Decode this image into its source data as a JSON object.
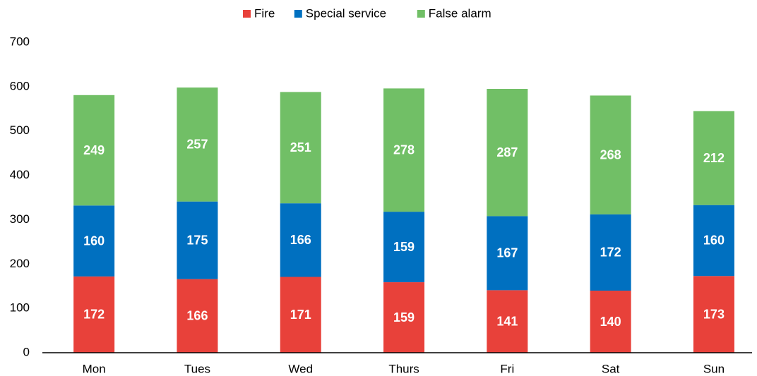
{
  "chart_data": {
    "type": "stacked_bar",
    "categories": [
      "Mon",
      "Tues",
      "Wed",
      "Thurs",
      "Fri",
      "Sat",
      "Sun"
    ],
    "series": [
      {
        "name": "Fire",
        "color": "#e8413a",
        "values": [
          172,
          166,
          171,
          159,
          141,
          140,
          173
        ]
      },
      {
        "name": "Special service",
        "color": "#0070c0",
        "values": [
          160,
          175,
          166,
          159,
          167,
          172,
          160
        ]
      },
      {
        "name": "False alarm",
        "color": "#71bf66",
        "values": [
          249,
          257,
          251,
          278,
          287,
          268,
          212
        ]
      }
    ],
    "ylim": [
      0,
      700
    ],
    "yticks": [
      0,
      100,
      200,
      300,
      400,
      500,
      600,
      700
    ],
    "grid": false,
    "legend": "top"
  }
}
